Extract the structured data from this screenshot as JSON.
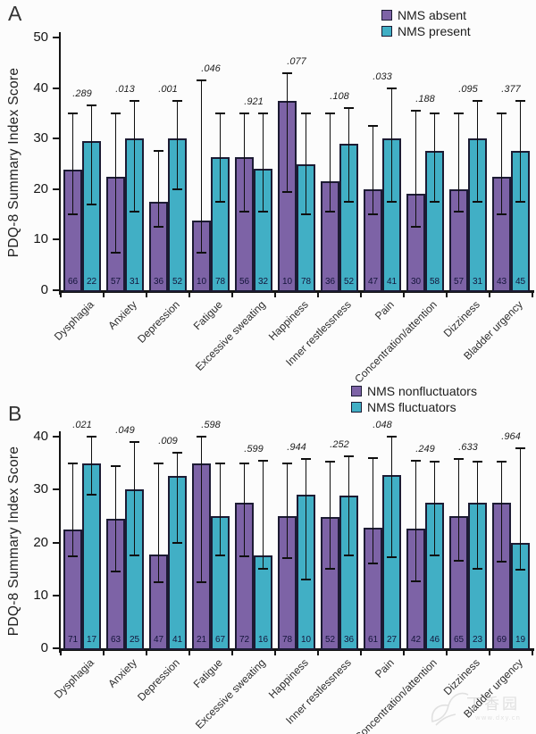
{
  "watermark": {
    "text": "丁香园",
    "subtext": "www.dxy.cn"
  },
  "colors": {
    "series1": "#7d63a6",
    "series2": "#41afc5",
    "outline": "#1c1b33",
    "error_bar": "#0f0f0f"
  },
  "chart_data": [
    {
      "type": "bar",
      "panel_label": "A",
      "ylabel": "PDQ-8 Summary Index Score",
      "ylim": [
        0,
        50
      ],
      "yticks": [
        0,
        10,
        20,
        30,
        40,
        50
      ],
      "grid": false,
      "error_bars": true,
      "legend_position": "top-right",
      "categories": [
        "Dysphagia",
        "Anxiety",
        "Depression",
        "Fatigue",
        "Excessive sweating",
        "Happiness",
        "Inner restlessness",
        "Pain",
        "Concentration/attention",
        "Dizziness",
        "Bladder urgency"
      ],
      "p_values": [
        ".289",
        ".013",
        ".001",
        ".046",
        ".921",
        ".077",
        ".108",
        ".033",
        ".188",
        ".095",
        ".377"
      ],
      "series": [
        {
          "name": "NMS absent",
          "color": "#7d63a6",
          "values": [
            23.8,
            22.5,
            17.5,
            13.8,
            26.3,
            37.5,
            21.5,
            20.0,
            19.0,
            20.0,
            22.5
          ],
          "err_low": [
            15.0,
            7.5,
            12.5,
            7.5,
            15.5,
            19.5,
            15.5,
            15.0,
            12.5,
            15.5,
            15.0
          ],
          "err_high": [
            35.0,
            35.0,
            27.5,
            41.5,
            35.0,
            43.0,
            35.0,
            32.5,
            35.5,
            35.0,
            35.0
          ],
          "n": [
            66,
            57,
            36,
            10,
            56,
            10,
            36,
            47,
            30,
            57,
            43
          ]
        },
        {
          "name": "NMS present",
          "color": "#41afc5",
          "values": [
            29.5,
            30.0,
            30.0,
            26.3,
            24.0,
            25.0,
            29.0,
            30.0,
            27.5,
            30.0,
            27.5
          ],
          "err_low": [
            17.0,
            15.5,
            20.0,
            17.5,
            15.5,
            15.0,
            17.5,
            17.5,
            17.5,
            17.5,
            17.5
          ],
          "err_high": [
            36.5,
            37.5,
            37.5,
            35.0,
            35.0,
            35.0,
            36.0,
            40.0,
            35.0,
            37.5,
            37.5
          ],
          "n": [
            22,
            31,
            52,
            78,
            32,
            78,
            52,
            41,
            58,
            31,
            45
          ]
        }
      ]
    },
    {
      "type": "bar",
      "panel_label": "B",
      "ylabel": "PDQ-8 Summary Index Score",
      "ylim": [
        0,
        40
      ],
      "yticks": [
        0,
        10,
        20,
        30,
        40
      ],
      "grid": false,
      "error_bars": true,
      "legend_position": "top-right",
      "categories": [
        "Dysphagia",
        "Anxiety",
        "Depression",
        "Fatigue",
        "Excessive sweating",
        "Happiness",
        "Inner restlessness",
        "Pain",
        "Concentration/attention",
        "Dizziness",
        "Bladder urgency"
      ],
      "p_values": [
        ".021",
        ".049",
        ".009",
        ".598",
        ".599",
        ".944",
        ".252",
        ".048",
        ".249",
        ".633",
        ".964"
      ],
      "series": [
        {
          "name": "NMS nonfluctuators",
          "color": "#7d63a6",
          "values": [
            22.5,
            24.5,
            17.8,
            35.0,
            27.5,
            25.0,
            24.8,
            22.8,
            22.6,
            25.0,
            27.5
          ],
          "err_low": [
            17.3,
            14.5,
            12.5,
            12.5,
            17.3,
            17.0,
            15.0,
            16.0,
            12.7,
            16.5,
            16.4
          ],
          "err_high": [
            35.0,
            34.5,
            35.0,
            40.0,
            35.0,
            35.0,
            35.3,
            36.0,
            35.5,
            35.8,
            35.3
          ],
          "n": [
            71,
            63,
            47,
            21,
            72,
            78,
            52,
            61,
            42,
            65,
            69
          ]
        },
        {
          "name": "NMS fluctuators",
          "color": "#41afc5",
          "values": [
            35.0,
            30.0,
            32.5,
            25.0,
            17.5,
            29.0,
            28.8,
            32.8,
            27.5,
            27.5,
            20.0
          ],
          "err_low": [
            29.0,
            17.5,
            20.0,
            17.5,
            15.0,
            13.0,
            17.5,
            17.2,
            17.5,
            15.0,
            14.9
          ],
          "err_high": [
            40.0,
            39.0,
            37.0,
            35.0,
            35.5,
            35.8,
            36.3,
            40.0,
            35.3,
            35.3,
            37.8
          ],
          "n": [
            17,
            25,
            41,
            67,
            16,
            10,
            36,
            27,
            46,
            23,
            19
          ]
        }
      ]
    }
  ]
}
